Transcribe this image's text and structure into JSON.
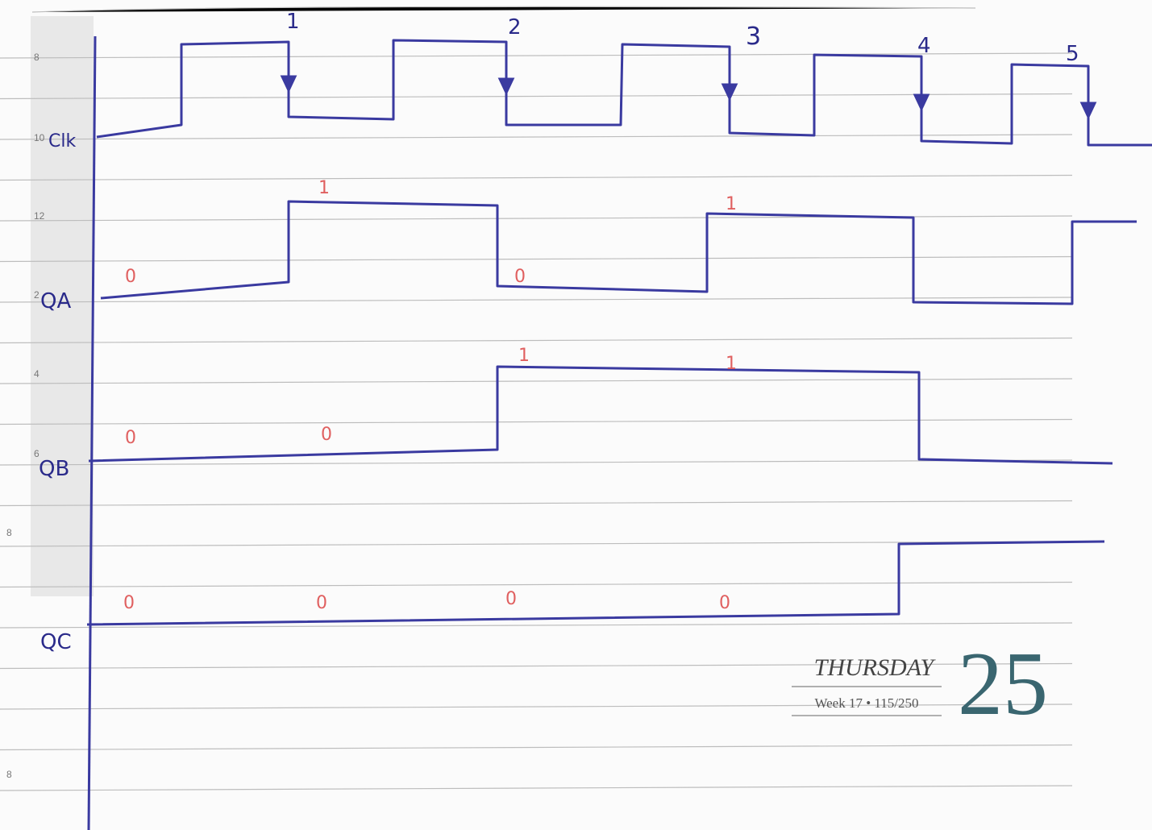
{
  "planner": {
    "day": "THURSDAY",
    "week": "Week 17 • 115/250",
    "date": "25",
    "hours": [
      "8",
      "10",
      "12",
      "2",
      "4",
      "6",
      "8",
      "8"
    ]
  },
  "diagram": {
    "pulses": [
      "1",
      "2",
      "3",
      "4",
      "5"
    ],
    "signals": [
      {
        "label": "Clk"
      },
      {
        "label": "QA",
        "annotations": [
          "0",
          "1",
          "0",
          "1"
        ]
      },
      {
        "label": "QB",
        "annotations": [
          "0",
          "0",
          "1",
          "1"
        ]
      },
      {
        "label": "QC",
        "annotations": [
          "0",
          "0",
          "0",
          "0"
        ]
      }
    ]
  }
}
